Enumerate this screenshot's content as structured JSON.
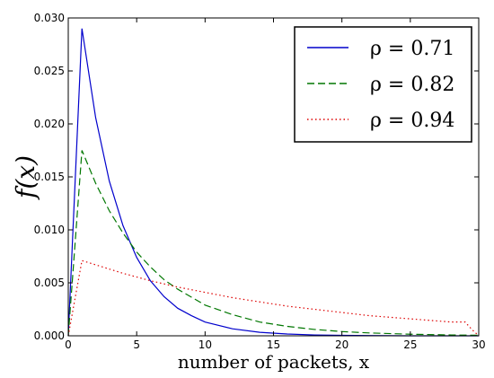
{
  "chart_data": {
    "type": "line",
    "title": "",
    "xlabel": "number of packets, x",
    "ylabel": "f(x)",
    "xlim": [
      0,
      30
    ],
    "ylim": [
      0,
      0.03
    ],
    "xticks": [
      "0",
      "5",
      "10",
      "15",
      "20",
      "25",
      "30"
    ],
    "yticks": [
      "0.000",
      "0.005",
      "0.010",
      "0.015",
      "0.020",
      "0.025",
      "0.030"
    ],
    "grid": false,
    "legend_position": "top-right",
    "series": [
      {
        "name": "ρ = 0.71",
        "color": "#0000cc",
        "style": "solid",
        "x": [
          0,
          1,
          2,
          3,
          4,
          5,
          6,
          7,
          8,
          9,
          10,
          12,
          14,
          16,
          18,
          20,
          22,
          25,
          30
        ],
        "y": [
          0.0,
          0.029,
          0.0206,
          0.0146,
          0.0104,
          0.0074,
          0.0052,
          0.0037,
          0.0026,
          0.0019,
          0.0013,
          0.00066,
          0.00033,
          0.00017,
          8e-05,
          4e-05,
          2e-05,
          0.0,
          0.0
        ]
      },
      {
        "name": "ρ = 0.82",
        "color": "#007700",
        "style": "dashed",
        "x": [
          0,
          1,
          2,
          3,
          4,
          5,
          6,
          7,
          8,
          10,
          12,
          14,
          16,
          18,
          20,
          22,
          25,
          28,
          30
        ],
        "y": [
          0.0,
          0.0175,
          0.0144,
          0.0118,
          0.0097,
          0.0079,
          0.0065,
          0.0053,
          0.0044,
          0.0029,
          0.002,
          0.0013,
          0.00089,
          0.0006,
          0.0004,
          0.00027,
          0.00015,
          8e-05,
          5e-05
        ]
      },
      {
        "name": "ρ = 0.94",
        "color": "#dd0000",
        "style": "dotted",
        "x": [
          0,
          1,
          2,
          4,
          6,
          8,
          10,
          12,
          14,
          16,
          18,
          20,
          22,
          24,
          26,
          28,
          29,
          29.5,
          30
        ],
        "y": [
          0.0,
          0.0071,
          0.0067,
          0.0059,
          0.0052,
          0.0046,
          0.0041,
          0.0036,
          0.0032,
          0.0028,
          0.0025,
          0.0022,
          0.0019,
          0.0017,
          0.0015,
          0.0013,
          0.0013,
          0.0006,
          0.0
        ]
      }
    ]
  }
}
